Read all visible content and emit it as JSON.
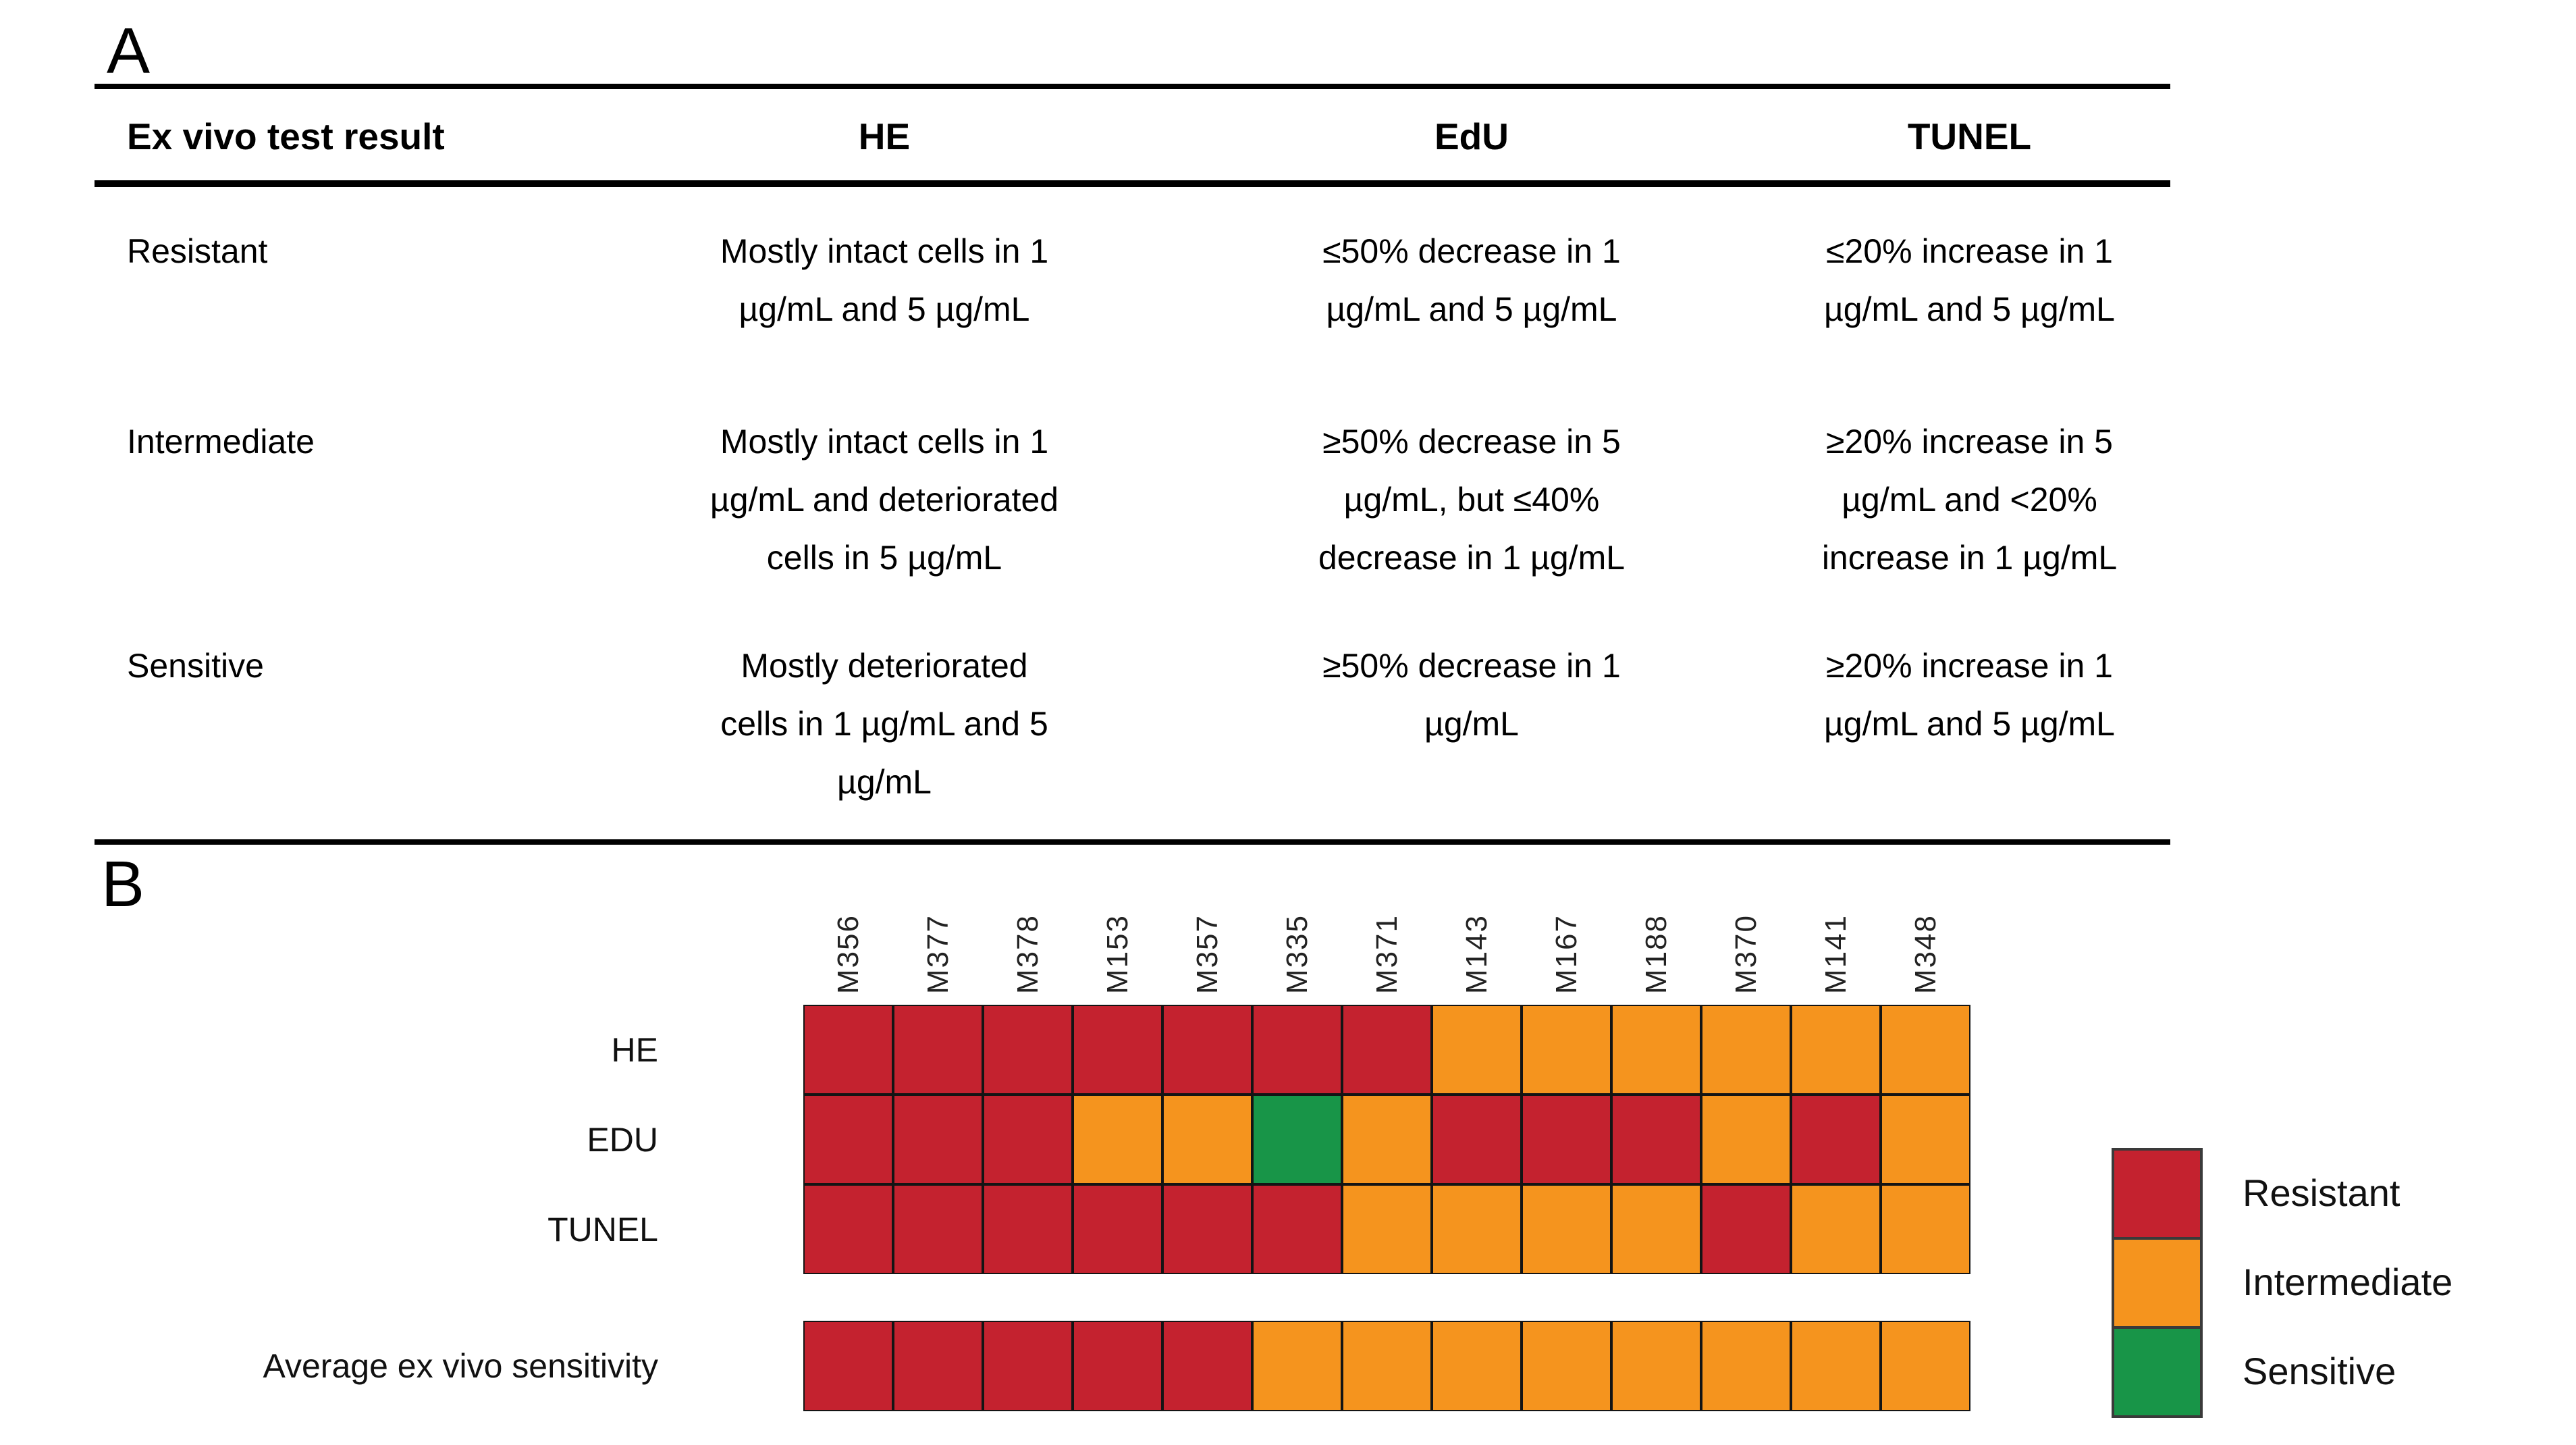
{
  "panel_a": {
    "label": "A",
    "table": {
      "headers": [
        "Ex vivo test result",
        "HE",
        "EdU",
        "TUNEL"
      ],
      "rows": [
        {
          "result": "Resistant",
          "he": "Mostly intact cells in 1\nµg/mL and 5 µg/mL",
          "edu": "≤50% decrease in 1\nµg/mL and 5 µg/mL",
          "tunel": "≤20% increase in 1\nµg/mL and 5 µg/mL"
        },
        {
          "result": "Intermediate",
          "he": "Mostly intact cells in 1\nµg/mL and deteriorated\ncells in 5 µg/mL",
          "edu": "≥50% decrease in 5\nµg/mL, but ≤40%\ndecrease in 1 µg/mL",
          "tunel": "≥20% increase in 5\nµg/mL and <20%\nincrease in 1 µg/mL"
        },
        {
          "result": "Sensitive",
          "he": "Mostly deteriorated\ncells in 1 µg/mL and 5\nµg/mL",
          "edu": "≥50% decrease in 1\nµg/mL",
          "tunel": "≥20% increase in 1\nµg/mL and 5 µg/mL"
        }
      ]
    }
  },
  "panel_b": {
    "label": "B",
    "row_labels": [
      "HE",
      "EDU",
      "TUNEL"
    ],
    "average_label": "Average ex vivo sensitivity",
    "legend": [
      {
        "label": "Resistant",
        "color": "#C4222F"
      },
      {
        "label": "Intermediate",
        "color": "#F5941E"
      },
      {
        "label": "Sensitive",
        "color": "#189548"
      }
    ]
  },
  "chart_data": {
    "type": "heatmap",
    "columns": [
      "M356",
      "M377",
      "M378",
      "M153",
      "M357",
      "M335",
      "M371",
      "M143",
      "M167",
      "M188",
      "M370",
      "M141",
      "M348"
    ],
    "rows": [
      {
        "name": "HE",
        "values": [
          "R",
          "R",
          "R",
          "R",
          "R",
          "R",
          "R",
          "I",
          "I",
          "I",
          "I",
          "I",
          "I"
        ]
      },
      {
        "name": "EDU",
        "values": [
          "R",
          "R",
          "R",
          "I",
          "I",
          "S",
          "I",
          "R",
          "R",
          "R",
          "I",
          "R",
          "I"
        ]
      },
      {
        "name": "TUNEL",
        "values": [
          "R",
          "R",
          "R",
          "R",
          "R",
          "R",
          "I",
          "I",
          "I",
          "I",
          "R",
          "I",
          "I"
        ]
      },
      {
        "name": "Average ex vivo sensitivity",
        "values": [
          "R",
          "R",
          "R",
          "R",
          "R",
          "I",
          "I",
          "I",
          "I",
          "I",
          "I",
          "I",
          "I"
        ]
      }
    ],
    "value_labels": {
      "R": "Resistant",
      "I": "Intermediate",
      "S": "Sensitive"
    },
    "value_colors": {
      "R": "#C4222F",
      "I": "#F5941E",
      "S": "#189548"
    },
    "legend_position": "right",
    "grid": "on"
  }
}
